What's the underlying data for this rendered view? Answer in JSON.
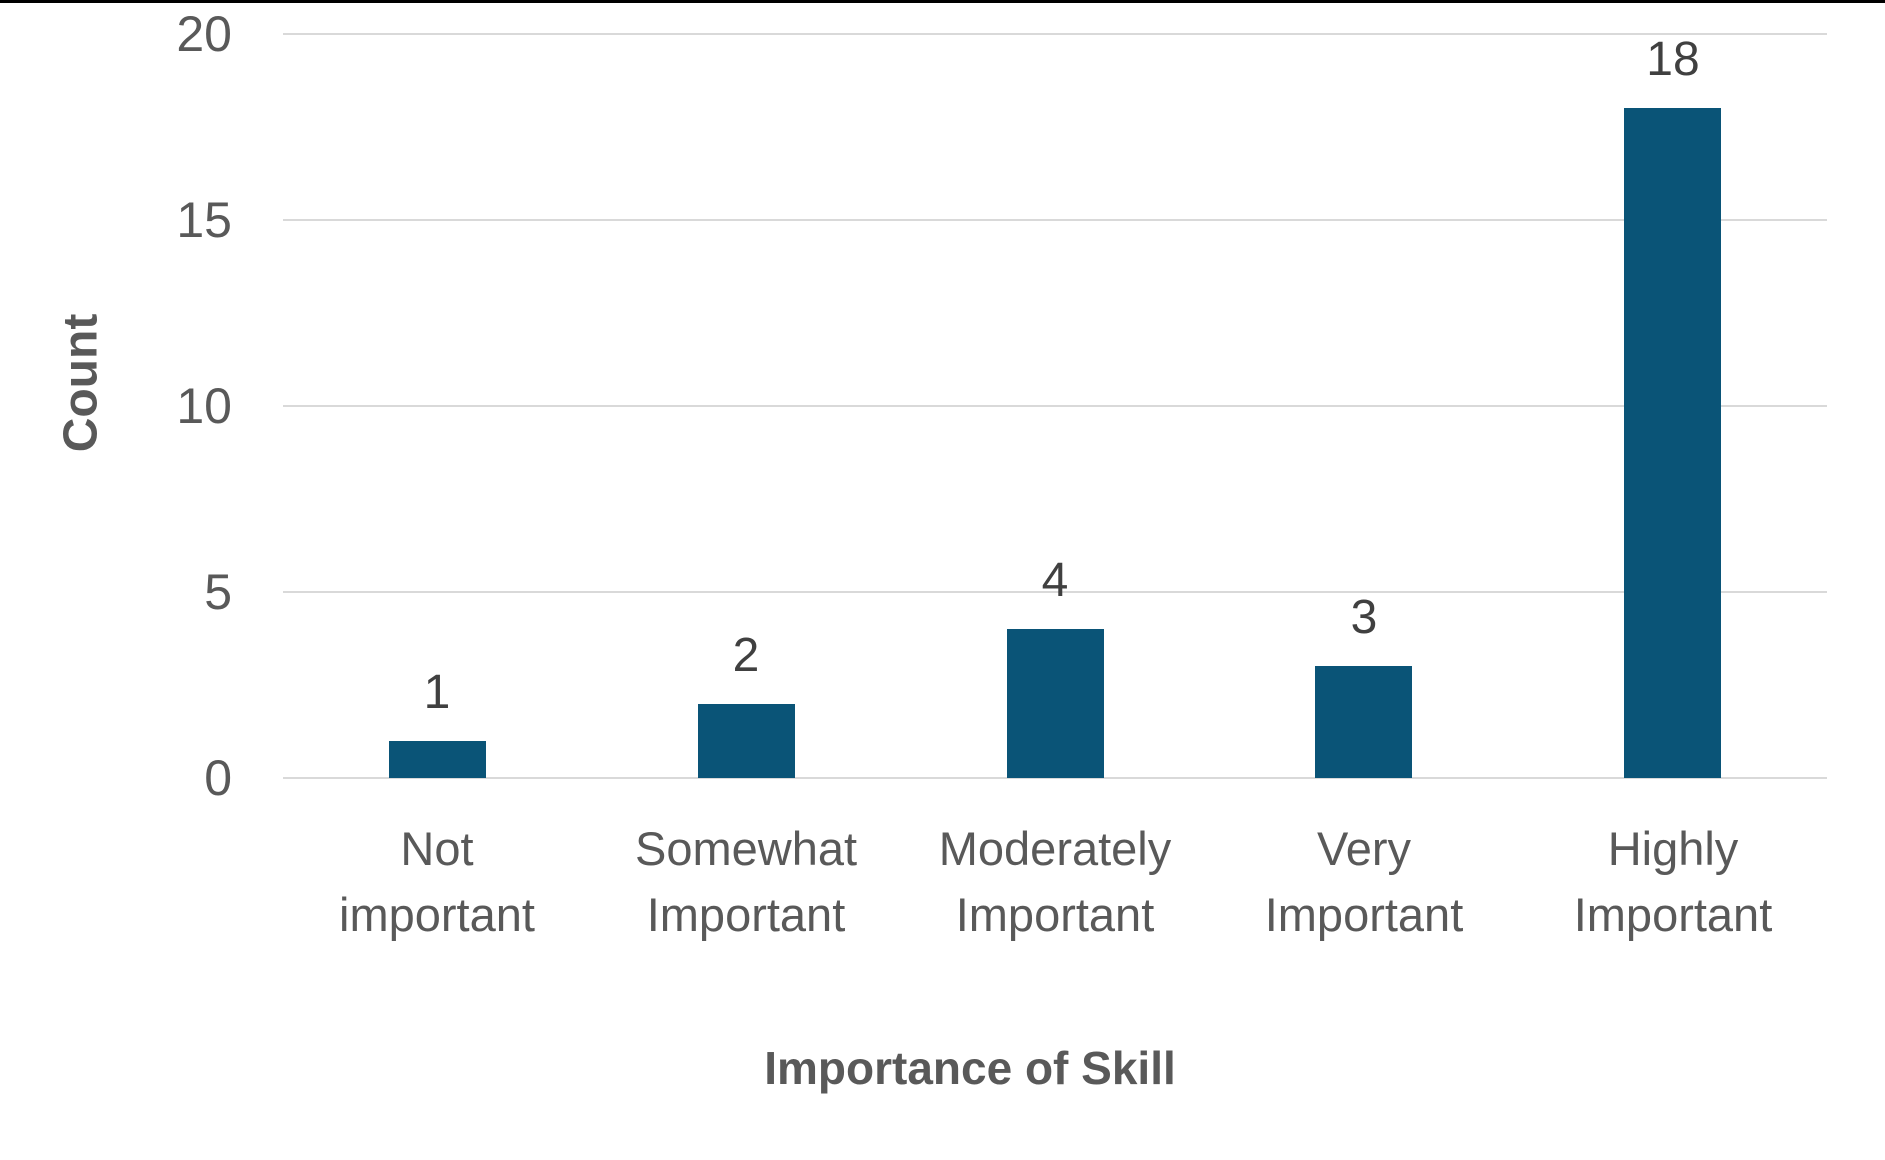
{
  "chart_data": {
    "type": "bar",
    "title": "",
    "xlabel": "Importance of Skill",
    "ylabel": "Count",
    "categories": [
      "Not important",
      "Somewhat Important",
      "Moderately Important",
      "Very Important",
      "Highly Important"
    ],
    "category_lines": [
      [
        "Not",
        "important"
      ],
      [
        "Somewhat",
        "Important"
      ],
      [
        "Moderately",
        "Important"
      ],
      [
        "Very",
        "Important"
      ],
      [
        "Highly",
        "Important"
      ]
    ],
    "values": [
      1,
      2,
      4,
      3,
      18
    ],
    "data_labels": [
      "1",
      "2",
      "4",
      "3",
      "18"
    ],
    "y_ticks": [
      0,
      5,
      10,
      15,
      20
    ],
    "ylim": [
      0,
      20
    ],
    "grid": "horizontal-only",
    "legend": "none",
    "colors": {
      "bar": "#0A5477",
      "gridline": "#D9D9D9",
      "axis_text": "#595959",
      "data_label_text": "#404040",
      "top_border": "#000000"
    }
  }
}
